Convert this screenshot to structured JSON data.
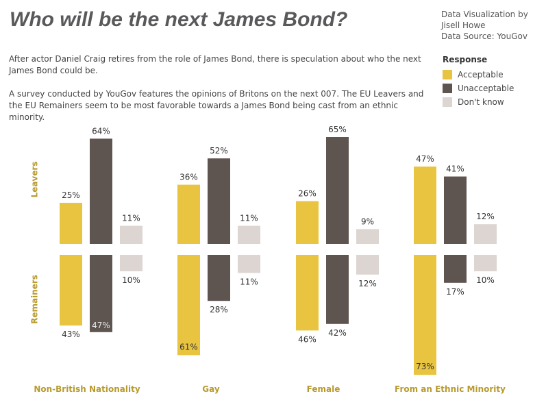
{
  "header": {
    "title": "Who will be the next James Bond?",
    "credit_line1": "Data Visualization by",
    "credit_line2": "Jisell Howe",
    "credit_line3": "Data Source: YouGov"
  },
  "intro": {
    "paragraph1": "After actor Daniel Craig retires from the role of James Bond, there is speculation about who the next James Bond could be.",
    "paragraph2": "A survey conducted by YouGov features the opinions of Britons on the next 007. The EU Leavers and the EU Remainers seem to be most favorable towards a James Bond being cast from an ethnic minority."
  },
  "legend": {
    "title": "Response",
    "items": [
      {
        "label": "Acceptable",
        "color": "#e8c441"
      },
      {
        "label": "Unacceptable",
        "color": "#5e5450"
      },
      {
        "label": "Don't know",
        "color": "#ddd5d2"
      }
    ]
  },
  "chart_data": {
    "type": "bar",
    "categories": [
      "Non-British Nationality",
      "Gay",
      "Female",
      "From an Ethnic Minority"
    ],
    "groups": [
      "Leavers",
      "Remainers"
    ],
    "unit": "%",
    "series": [
      {
        "name": "Acceptable",
        "color": "#e8c441",
        "Leavers": [
          25,
          36,
          26,
          47
        ],
        "Remainers": [
          43,
          61,
          46,
          73
        ]
      },
      {
        "name": "Unacceptable",
        "color": "#5e5450",
        "Leavers": [
          64,
          52,
          65,
          41
        ],
        "Remainers": [
          47,
          28,
          42,
          17
        ]
      },
      {
        "name": "Don't know",
        "color": "#ddd5d2",
        "Leavers": [
          11,
          11,
          9,
          12
        ],
        "Remainers": [
          10,
          11,
          12,
          10
        ]
      }
    ],
    "label_color": "#b89a2e",
    "ylim": [
      0,
      73
    ]
  }
}
